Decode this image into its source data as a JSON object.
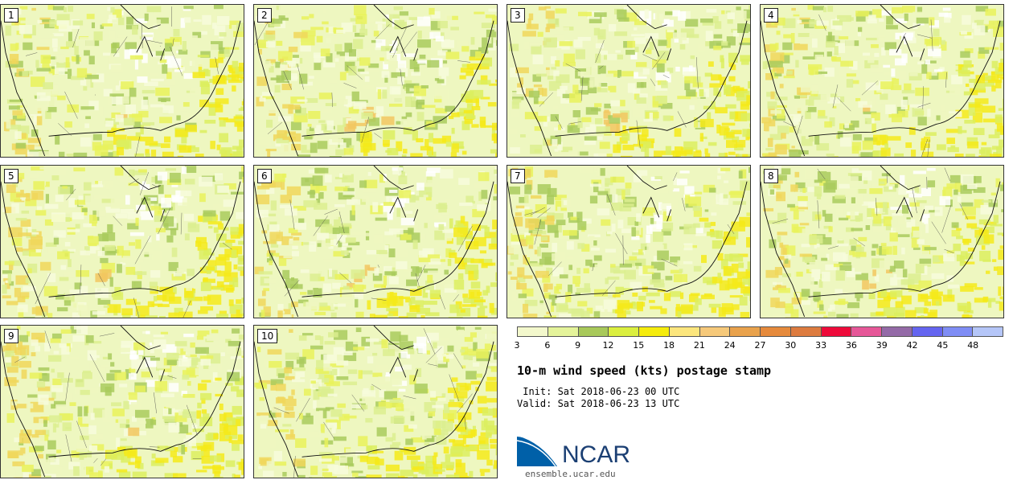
{
  "panels": [
    {
      "label": "1"
    },
    {
      "label": "2"
    },
    {
      "label": "3"
    },
    {
      "label": "4"
    },
    {
      "label": "5"
    },
    {
      "label": "6"
    },
    {
      "label": "7"
    },
    {
      "label": "8"
    },
    {
      "label": "9"
    },
    {
      "label": "10"
    }
  ],
  "colorbar": {
    "colors": [
      "#f3f8cc",
      "#e4f39a",
      "#a8c95a",
      "#dbef3f",
      "#f5ec0c",
      "#fce67d",
      "#f6c97a",
      "#e9a24c",
      "#e68a3c",
      "#dd7b3f",
      "#ee0a3a",
      "#e65798",
      "#946aa7",
      "#6565f0",
      "#7f8df5",
      "#b5c6f8"
    ],
    "ticks": [
      "3",
      "6",
      "9",
      "12",
      "15",
      "18",
      "21",
      "24",
      "27",
      "30",
      "33",
      "36",
      "39",
      "42",
      "45",
      "48"
    ]
  },
  "title": "10-m wind speed (kts) postage stamp",
  "init_line": " Init: Sat 2018-06-23 00 UTC",
  "valid_line": "Valid: Sat 2018-06-23 13 UTC",
  "logo": {
    "text": "NCAR",
    "url": "ensemble.ucar.edu",
    "colors": {
      "blue": "#0060a8",
      "navy": "#1b3f73"
    }
  }
}
